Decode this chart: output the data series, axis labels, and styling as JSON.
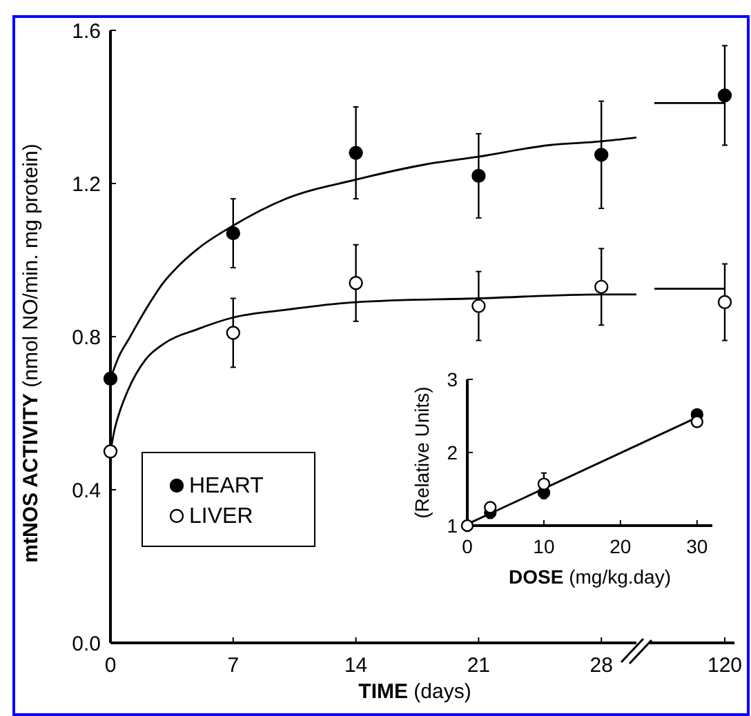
{
  "chart_data": [
    {
      "type": "scatter",
      "xlabel": "TIME (days)",
      "ylabel": "mtNOS ACTIVITY (nmol NO/min. mg protein)",
      "xlim": [
        0,
        30
      ],
      "xticks": [
        0,
        7,
        14,
        21,
        28
      ],
      "ylim": [
        0,
        1.6
      ],
      "yticks": [
        {
          "value": 0,
          "label": "0.0"
        },
        0.4,
        0.8,
        1.2,
        1.6
      ],
      "marker": "circle",
      "legend": "left",
      "series": [
        {
          "name": "HEART",
          "color": "#000000",
          "x": [
            0,
            7,
            14,
            21,
            28
          ],
          "values": [
            0.69,
            1.07,
            1.28,
            1.22,
            1.275
          ],
          "errors": [
            null,
            0.09,
            0.12,
            0.11,
            0.14
          ]
        },
        {
          "name": "LIVER",
          "color": "#ffffff",
          "x": [
            0,
            7,
            14,
            21,
            28
          ],
          "values": [
            0.5,
            0.81,
            0.94,
            0.88,
            0.93
          ],
          "errors": [
            null,
            0.09,
            0.1,
            0.09,
            0.1
          ]
        },
        {
          "type": "line",
          "marker": "none",
          "color": "#000000",
          "x": [
            0,
            0.5,
            1,
            2,
            3,
            4,
            5,
            7,
            10,
            14,
            18,
            21,
            25,
            28,
            30
          ],
          "values": [
            0.69,
            0.75,
            0.79,
            0.87,
            0.94,
            0.99,
            1.03,
            1.09,
            1.16,
            1.21,
            1.25,
            1.27,
            1.3,
            1.31,
            1.32
          ]
        },
        {
          "type": "line",
          "marker": "none",
          "color": "#000000",
          "x": [
            0,
            0.25,
            0.5,
            1,
            2,
            3,
            5,
            7,
            10,
            14,
            21,
            28,
            30
          ],
          "values": [
            0.5,
            0.56,
            0.6,
            0.66,
            0.74,
            0.78,
            0.82,
            0.85,
            0.87,
            0.89,
            0.9,
            0.91,
            0.91
          ]
        }
      ]
    },
    {
      "type": "scatter",
      "categories": [
        "120"
      ],
      "ylim": [
        0,
        1.6
      ],
      "tick_labels": "x",
      "marker": "circle",
      "ref_lines": [
        {
          "axis": "y",
          "value": 1.41,
          "color": "#000000"
        },
        {
          "axis": "y",
          "value": 0.925,
          "color": "#000000"
        }
      ],
      "series": [
        {
          "color": "#000000",
          "values": [
            1.43
          ],
          "errors": [
            0.13
          ]
        },
        {
          "color": "#ffffff",
          "values": [
            0.89
          ],
          "errors": [
            0.1
          ]
        }
      ]
    },
    {
      "type": "scatter",
      "xlabel": "DOSE (mg/kg.day)",
      "ylabel": "(Relative Units)",
      "xlim": [
        0,
        32
      ],
      "xticks": [
        0,
        10,
        20,
        30
      ],
      "ylim": [
        1,
        3
      ],
      "yticks": [
        1,
        2,
        3
      ],
      "marker": "circle",
      "series": [
        {
          "color": "#000000",
          "x": [
            3,
            10,
            30
          ],
          "values": [
            1.18,
            1.45,
            2.52
          ],
          "errors": [
            0.08,
            0.08,
            0.05
          ]
        },
        {
          "color": "#ffffff",
          "x": [
            0,
            3,
            10,
            30
          ],
          "values": [
            1.0,
            1.25,
            1.57,
            2.42
          ],
          "errors": [
            null,
            0.06,
            0.15,
            0.06
          ]
        },
        {
          "type": "line",
          "marker": "none",
          "color": "#000000",
          "x": [
            0,
            30
          ],
          "values": [
            1.02,
            2.48
          ]
        }
      ]
    }
  ]
}
